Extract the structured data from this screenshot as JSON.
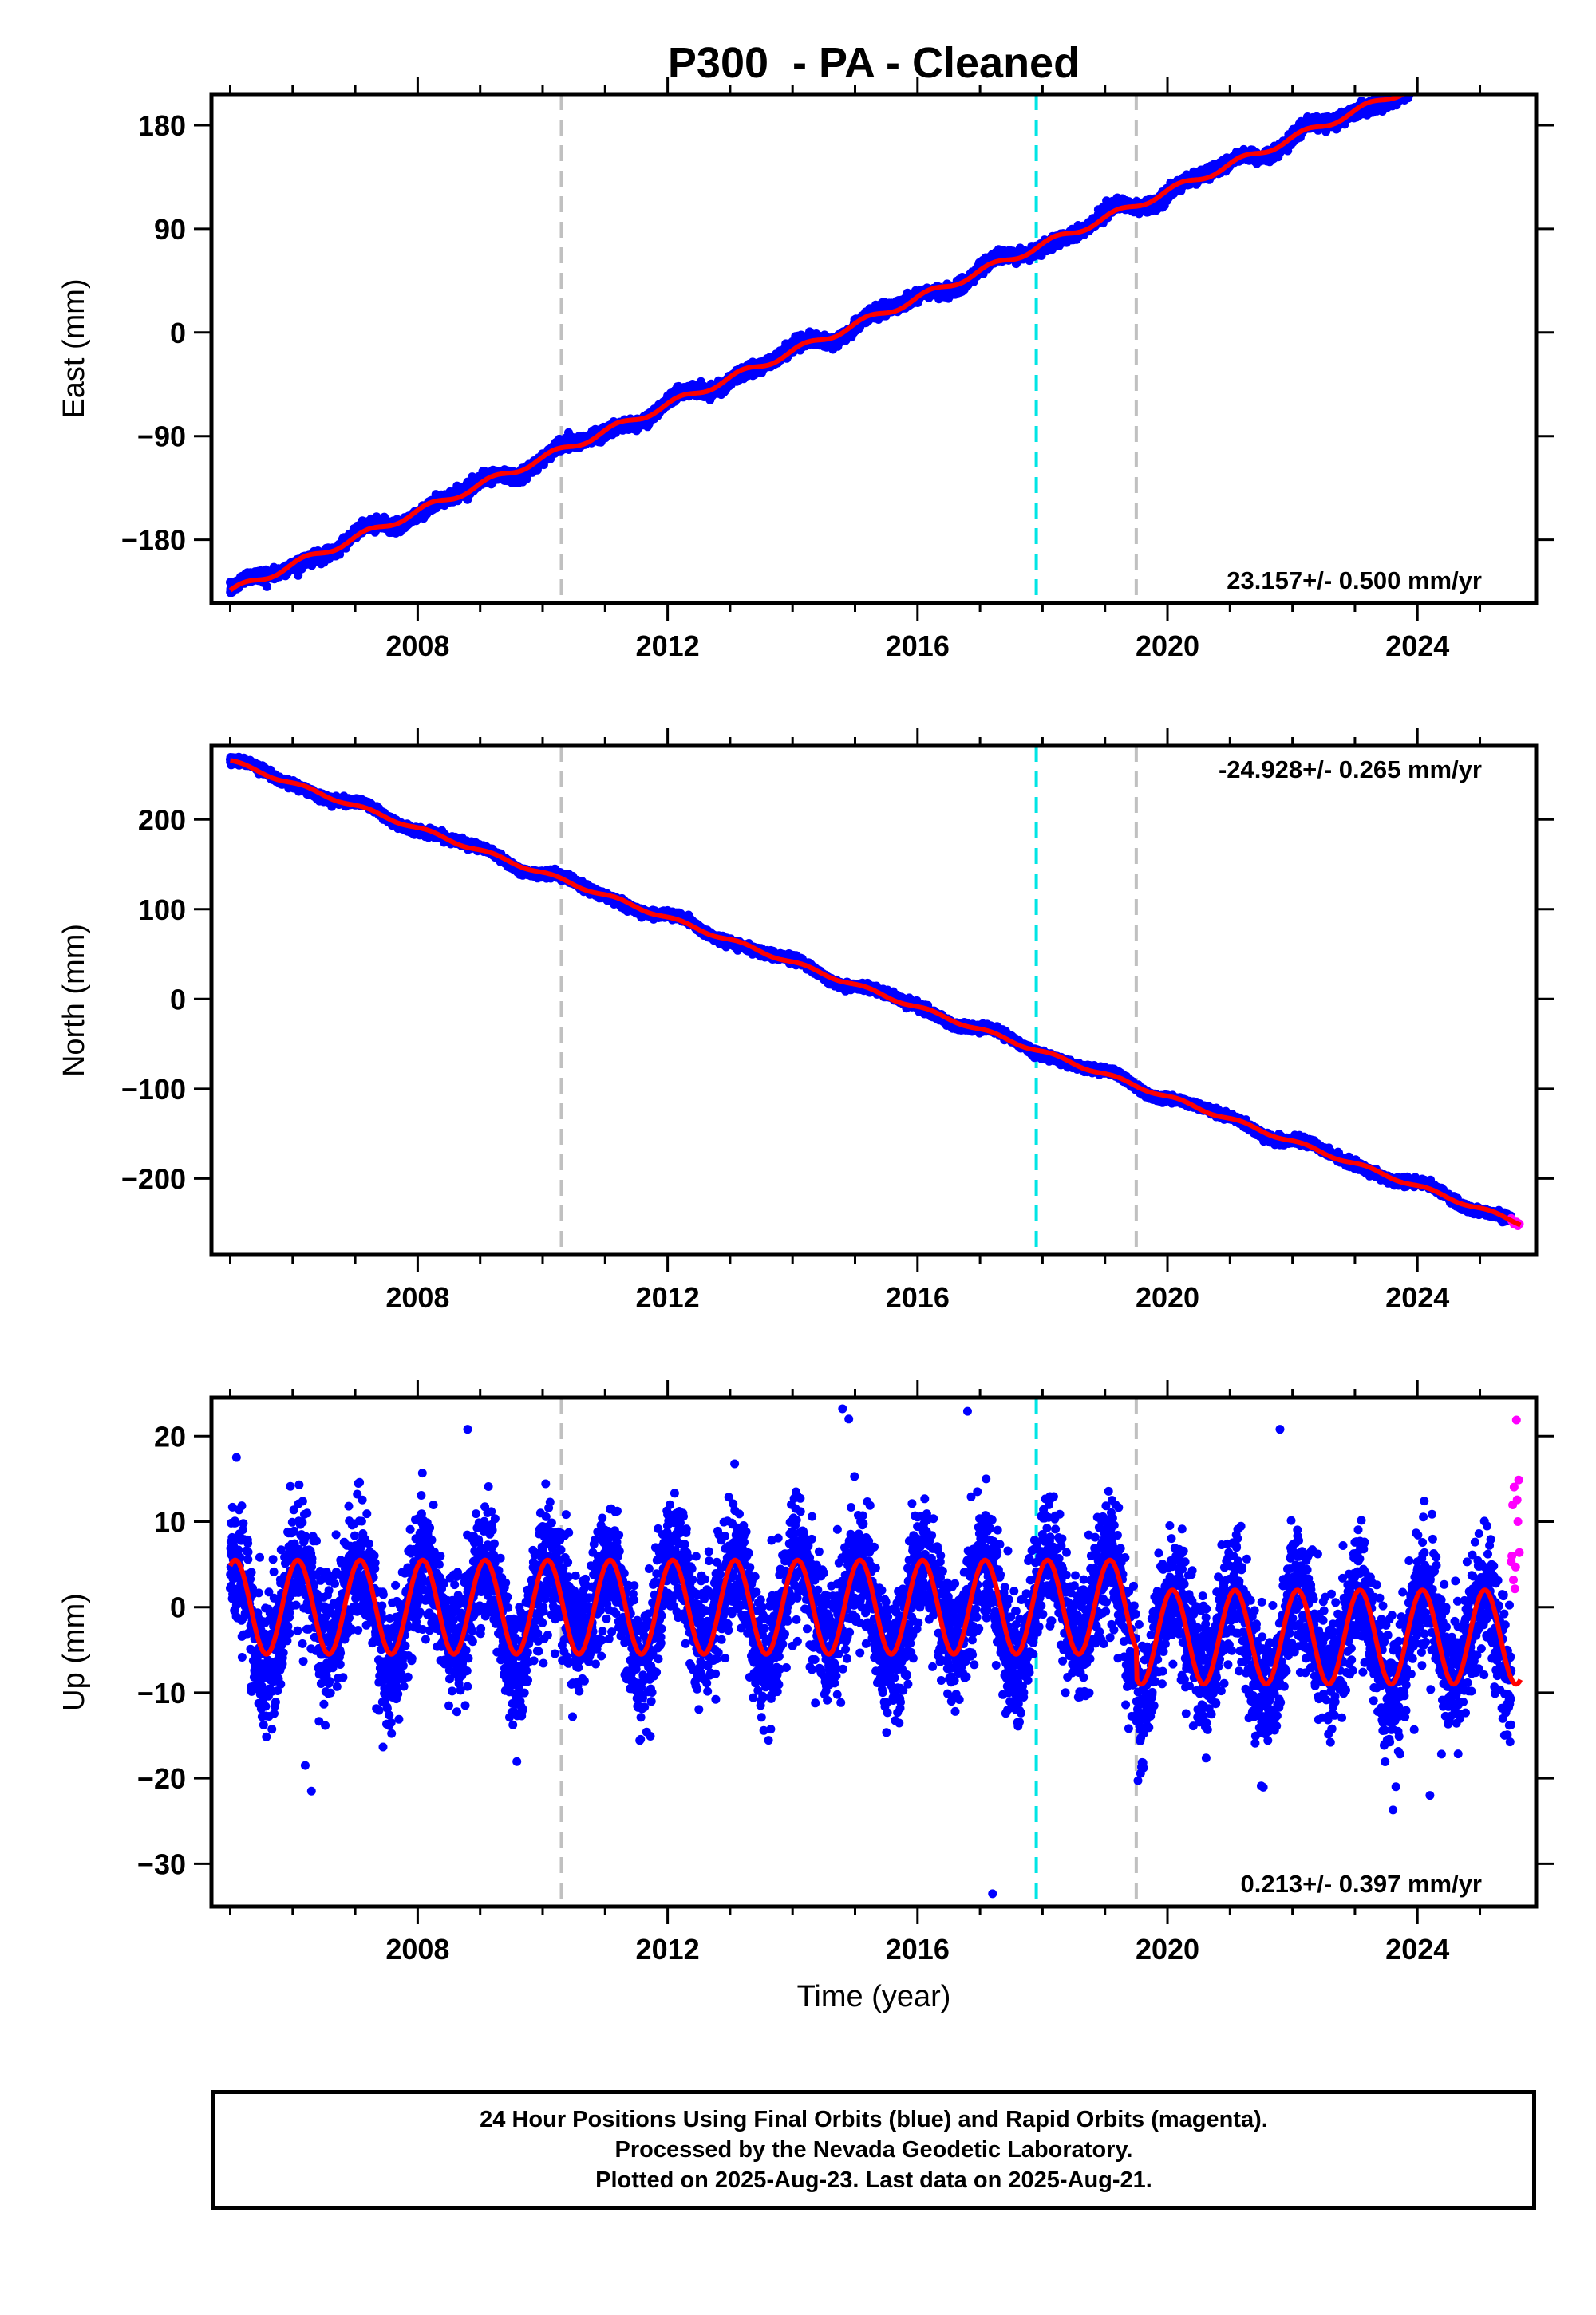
{
  "title": "P300  - PA - Cleaned",
  "xlabel": "Time (year)",
  "footer": {
    "line1": "24 Hour Positions Using Final Orbits (blue) and Rapid Orbits (magenta).",
    "line2": "Processed by the Nevada Geodetic Laboratory.",
    "line3": "Plotted on 2025-Aug-23. Last data on 2025-Aug-21."
  },
  "colors": {
    "final_orbits": "#0000ff",
    "rapid_orbits": "#ff00ff",
    "model_fit": "#ff0000",
    "event_gray": "#c0c0c0",
    "event_cyan": "#00e5e5"
  },
  "chart_data": [
    {
      "type": "scatter",
      "panel": "east",
      "ylabel": "East (mm)",
      "xlim": [
        2004.7,
        2025.9
      ],
      "ylim": [
        -235,
        207
      ],
      "xticks": [
        2008,
        2012,
        2016,
        2020,
        2024
      ],
      "yticks": [
        -180,
        -90,
        0,
        90,
        180
      ],
      "rate_label": "23.157+/- 0.500 mm/yr",
      "rate_position": "bottom-right",
      "rate": 23.157,
      "intercept_2005": -225,
      "seasonal_amplitude": 3,
      "noise": 2.5,
      "event_lines": [
        {
          "x": 2010.3,
          "color": "gray"
        },
        {
          "x": 2017.9,
          "color": "cyan"
        },
        {
          "x": 2019.5,
          "color": "gray"
        }
      ],
      "data_range": [
        2005.0,
        2025.6
      ],
      "rapid_range": [
        2025.5,
        2025.64
      ],
      "fit_offset": 0
    },
    {
      "type": "scatter",
      "panel": "north",
      "ylabel": "North (mm)",
      "xlim": [
        2004.7,
        2025.9
      ],
      "ylim": [
        -285,
        282
      ],
      "xticks": [
        2008,
        2012,
        2016,
        2020,
        2024
      ],
      "yticks": [
        -200,
        -100,
        0,
        100,
        200
      ],
      "rate_label": "-24.928+/- 0.265 mm/yr",
      "rate_position": "top-right",
      "rate": -24.928,
      "intercept_2005": 265,
      "seasonal_amplitude": 2,
      "noise": 2,
      "event_lines": [
        {
          "x": 2010.3,
          "color": "gray"
        },
        {
          "x": 2017.9,
          "color": "cyan"
        },
        {
          "x": 2019.5,
          "color": "gray"
        }
      ],
      "data_range": [
        2005.0,
        2025.6
      ],
      "rapid_range": [
        2025.5,
        2025.64
      ],
      "fit_offset": 0
    },
    {
      "type": "scatter",
      "panel": "up",
      "ylabel": "Up (mm)",
      "xlim": [
        2004.7,
        2025.9
      ],
      "ylim": [
        -35,
        24.5
      ],
      "xticks": [
        2008,
        2012,
        2016,
        2020,
        2024
      ],
      "yticks": [
        -30,
        -20,
        -10,
        0,
        10,
        20
      ],
      "rate_label": "0.213+/- 0.397 mm/yr",
      "rate_position": "bottom-right",
      "rate": 0.213,
      "intercept_2005": 0,
      "seasonal_amplitude": 5.5,
      "noise": 3.6,
      "event_lines": [
        {
          "x": 2010.3,
          "color": "gray"
        },
        {
          "x": 2017.9,
          "color": "cyan"
        },
        {
          "x": 2019.5,
          "color": "gray"
        }
      ],
      "data_range": [
        2005.0,
        2025.6
      ],
      "rapid_range": [
        2025.5,
        2025.64
      ],
      "fit_offset": -3.5,
      "outliers": [
        {
          "x": 2005.1,
          "y": 17.5
        },
        {
          "x": 2006.2,
          "y": -18.5
        },
        {
          "x": 2006.3,
          "y": -21.5
        },
        {
          "x": 2008.8,
          "y": 20.8
        },
        {
          "x": 2014.8,
          "y": 23.2
        },
        {
          "x": 2014.9,
          "y": 22.0
        },
        {
          "x": 2016.8,
          "y": 22.9
        },
        {
          "x": 2017.2,
          "y": -33.5
        },
        {
          "x": 2021.8,
          "y": 20.8
        },
        {
          "x": 2024.2,
          "y": -22.0
        }
      ]
    }
  ]
}
